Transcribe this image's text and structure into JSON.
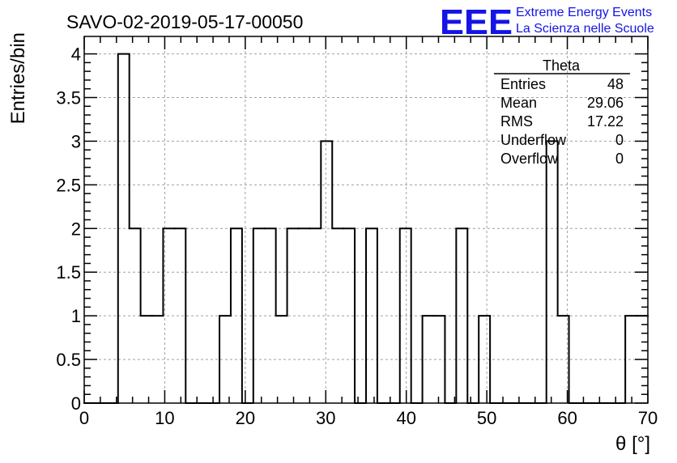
{
  "chart_data": {
    "type": "histogram",
    "title": "SAVO-02-2019-05-17-00050",
    "xlabel": "θ [°]",
    "ylabel": "Entries/bin",
    "xlim": [
      0,
      70
    ],
    "ylim": [
      0,
      4.2
    ],
    "x_ticks": [
      "0",
      "10",
      "20",
      "30",
      "40",
      "50",
      "60",
      "70"
    ],
    "y_ticks": [
      "0",
      "0.5",
      "1",
      "1.5",
      "2",
      "2.5",
      "3",
      "3.5",
      "4"
    ],
    "grid": true,
    "bin_width": 1.4,
    "bin_start": 0,
    "values": [
      0,
      0,
      0,
      4,
      2,
      1,
      1,
      2,
      2,
      0,
      0,
      0,
      1,
      2,
      0,
      2,
      2,
      1,
      2,
      2,
      2,
      3,
      2,
      2,
      0,
      2,
      0,
      0,
      2,
      0,
      1,
      1,
      0,
      2,
      0,
      1,
      0,
      0,
      0,
      0,
      0,
      3,
      1,
      0,
      0,
      0,
      0,
      0,
      1,
      1
    ],
    "stats_box": {
      "title": "Theta",
      "rows": [
        {
          "label": "Entries",
          "value": "48"
        },
        {
          "label": "Mean",
          "value": "29.06"
        },
        {
          "label": "RMS",
          "value": "17.22"
        },
        {
          "label": "Underflow",
          "value": "0"
        },
        {
          "label": "Overflow",
          "value": "0"
        }
      ]
    },
    "logo": {
      "mark": "EEE",
      "line1": "Extreme Energy Events",
      "line2": "La Scienza nelle Scuole",
      "color": "#1414e6"
    }
  }
}
